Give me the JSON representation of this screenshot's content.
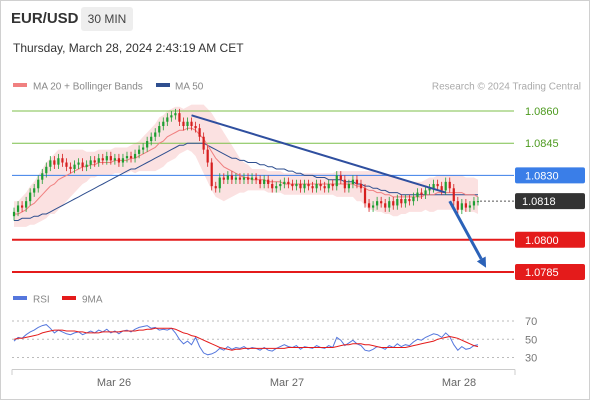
{
  "header": {
    "pair": "EUR/USD",
    "timeframe": "30 MIN",
    "datetime": "Thursday, March 28, 2024 2:43:19 AM CET"
  },
  "legend": {
    "ma20_bb": "MA 20 + Bollinger Bands",
    "ma50": "MA 50",
    "ma20_color": "#f08080",
    "ma50_color": "#2f4f8f",
    "credit": "Research © 2024 Trading Central"
  },
  "chart_data": [
    {
      "type": "candlestick",
      "y_range": [
        1.0772,
        1.0876
      ],
      "x_tick_labels": [
        "Mar 26",
        "Mar 27",
        "Mar 28"
      ],
      "levels": [
        {
          "value": 1.086,
          "label": "1.0860",
          "color": "#7cbf4a",
          "kind": "resistance"
        },
        {
          "value": 1.0845,
          "label": "1.0845",
          "color": "#7cbf4a",
          "kind": "resistance"
        },
        {
          "value": 1.083,
          "label": "1.0830",
          "color": "#3a7ee8",
          "kind": "pivot"
        },
        {
          "value": 1.0818,
          "label": "1.0818",
          "color": "#333333",
          "kind": "last-price"
        },
        {
          "value": 1.08,
          "label": "1.0800",
          "color": "#e41b1b",
          "kind": "support"
        },
        {
          "value": 1.0785,
          "label": "1.0785",
          "color": "#e41b1b",
          "kind": "support"
        }
      ],
      "close": [
        1.0813,
        1.0816,
        1.0815,
        1.0818,
        1.0822,
        1.0824,
        1.0828,
        1.0831,
        1.0834,
        1.0837,
        1.0835,
        1.0838,
        1.0836,
        1.0834,
        1.0833,
        1.0835,
        1.0836,
        1.0834,
        1.0835,
        1.0837,
        1.0836,
        1.0838,
        1.0837,
        1.0839,
        1.0837,
        1.0838,
        1.0836,
        1.0838,
        1.0839,
        1.0838,
        1.084,
        1.0842,
        1.0843,
        1.0846,
        1.0848,
        1.085,
        1.0853,
        1.0855,
        1.0857,
        1.0858,
        1.0859,
        1.0855,
        1.0853,
        1.0855,
        1.0853,
        1.0852,
        1.0848,
        1.0842,
        1.0836,
        1.0825,
        1.0824,
        1.0829,
        1.0828,
        1.083,
        1.0828,
        1.0829,
        1.0828,
        1.0829,
        1.0828,
        1.0829,
        1.0828,
        1.0826,
        1.0828,
        1.0826,
        1.0824,
        1.0825,
        1.0826,
        1.0827,
        1.0826,
        1.0825,
        1.0826,
        1.0824,
        1.0826,
        1.0825,
        1.0824,
        1.0826,
        1.0825,
        1.0824,
        1.0826,
        1.0825,
        1.083,
        1.0828,
        1.0824,
        1.0826,
        1.0828,
        1.0826,
        1.0824,
        1.0817,
        1.0815,
        1.0816,
        1.0818,
        1.0817,
        1.0815,
        1.0818,
        1.0816,
        1.0819,
        1.0817,
        1.0819,
        1.0818,
        1.082,
        1.0822,
        1.0821,
        1.0823,
        1.0824,
        1.0826,
        1.0825,
        1.0823,
        1.0827,
        1.0824,
        1.0818,
        1.0814,
        1.0817,
        1.0815,
        1.0816,
        1.0818,
        1.0818
      ],
      "ma20": [
        1.0812,
        1.0812,
        1.0813,
        1.0814,
        1.0816,
        1.0817,
        1.0819,
        1.0821,
        1.0823,
        1.0825,
        1.0826,
        1.0828,
        1.0829,
        1.083,
        1.0831,
        1.0832,
        1.0833,
        1.0834,
        1.0834,
        1.0835,
        1.0835,
        1.0836,
        1.0836,
        1.0836,
        1.0836,
        1.0837,
        1.0837,
        1.0837,
        1.0837,
        1.0838,
        1.0838,
        1.0839,
        1.084,
        1.0841,
        1.0842,
        1.0843,
        1.0845,
        1.0846,
        1.0848,
        1.0849,
        1.085,
        1.0851,
        1.0851,
        1.0852,
        1.0852,
        1.0851,
        1.0849,
        1.0847,
        1.0844,
        1.0841,
        1.0838,
        1.0836,
        1.0834,
        1.0833,
        1.0832,
        1.0831,
        1.083,
        1.0829,
        1.0829,
        1.0828,
        1.0828,
        1.0828,
        1.0828,
        1.0827,
        1.0827,
        1.0827,
        1.0827,
        1.0826,
        1.0826,
        1.0826,
        1.0826,
        1.0826,
        1.0826,
        1.0826,
        1.0826,
        1.0826,
        1.0826,
        1.0826,
        1.0826,
        1.0826,
        1.0826,
        1.0826,
        1.0826,
        1.0826,
        1.0826,
        1.0825,
        1.0825,
        1.0824,
        1.0823,
        1.0823,
        1.0822,
        1.0822,
        1.0821,
        1.0821,
        1.082,
        1.082,
        1.082,
        1.082,
        1.082,
        1.082,
        1.082,
        1.082,
        1.0821,
        1.0821,
        1.0821,
        1.0822,
        1.0822,
        1.0822,
        1.0822,
        1.0822,
        1.0822,
        1.0822,
        1.0821,
        1.0821,
        1.0821,
        1.082
      ],
      "bb_half_width": [
        0.0006,
        0.0006,
        0.0007,
        0.0008,
        0.0009,
        0.001,
        0.0011,
        0.0012,
        0.0013,
        0.0013,
        0.0014,
        0.0014,
        0.0013,
        0.0012,
        0.0011,
        0.001,
        0.0009,
        0.0008,
        0.0007,
        0.0006,
        0.0006,
        0.0006,
        0.0006,
        0.0006,
        0.0006,
        0.0006,
        0.0006,
        0.0006,
        0.0006,
        0.0006,
        0.0007,
        0.0007,
        0.0008,
        0.0009,
        0.001,
        0.0011,
        0.0012,
        0.0012,
        0.0012,
        0.0012,
        0.0012,
        0.0011,
        0.001,
        0.001,
        0.0011,
        0.0012,
        0.0014,
        0.0016,
        0.0017,
        0.0018,
        0.0018,
        0.0017,
        0.0016,
        0.0014,
        0.0012,
        0.001,
        0.0008,
        0.0007,
        0.0006,
        0.0005,
        0.0005,
        0.0005,
        0.0005,
        0.0005,
        0.0005,
        0.0005,
        0.0005,
        0.0005,
        0.0005,
        0.0005,
        0.0005,
        0.0005,
        0.0005,
        0.0005,
        0.0005,
        0.0005,
        0.0005,
        0.0005,
        0.0005,
        0.0005,
        0.0006,
        0.0006,
        0.0006,
        0.0006,
        0.0006,
        0.0007,
        0.0007,
        0.0008,
        0.0009,
        0.0009,
        0.0009,
        0.0009,
        0.0009,
        0.0009,
        0.0009,
        0.0009,
        0.0008,
        0.0008,
        0.0007,
        0.0007,
        0.0007,
        0.0007,
        0.0007,
        0.0008,
        0.0008,
        0.0008,
        0.0008,
        0.0008,
        0.0008,
        0.0008,
        0.0008,
        0.0008,
        0.0008,
        0.0008,
        0.0008,
        0.0008
      ],
      "ma50": [
        1.0809,
        1.0809,
        1.081,
        1.081,
        1.081,
        1.0811,
        1.0811,
        1.0812,
        1.0812,
        1.0813,
        1.0814,
        1.0815,
        1.0816,
        1.0817,
        1.0818,
        1.0819,
        1.082,
        1.0821,
        1.0822,
        1.0823,
        1.0824,
        1.0825,
        1.0826,
        1.0827,
        1.0828,
        1.0829,
        1.083,
        1.0831,
        1.0832,
        1.0833,
        1.0833,
        1.0834,
        1.0835,
        1.0836,
        1.0837,
        1.0838,
        1.0839,
        1.084,
        1.0841,
        1.0842,
        1.0843,
        1.0844,
        1.0844,
        1.0845,
        1.0845,
        1.0845,
        1.0845,
        1.0845,
        1.0844,
        1.0843,
        1.0842,
        1.0841,
        1.084,
        1.0839,
        1.0838,
        1.0838,
        1.0837,
        1.0837,
        1.0836,
        1.0836,
        1.0836,
        1.0835,
        1.0835,
        1.0834,
        1.0834,
        1.0833,
        1.0833,
        1.0833,
        1.0832,
        1.0832,
        1.0831,
        1.0831,
        1.083,
        1.083,
        1.083,
        1.0829,
        1.0829,
        1.0829,
        1.0828,
        1.0828,
        1.0828,
        1.0828,
        1.0827,
        1.0827,
        1.0827,
        1.0826,
        1.0826,
        1.0825,
        1.0825,
        1.0824,
        1.0824,
        1.0823,
        1.0823,
        1.0822,
        1.0822,
        1.0822,
        1.0821,
        1.0821,
        1.0821,
        1.0821,
        1.0821,
        1.0821,
        1.0821,
        1.0821,
        1.0821,
        1.0821,
        1.0821,
        1.0821,
        1.0821,
        1.0821,
        1.0821,
        1.0821,
        1.0821,
        1.0821,
        1.0821,
        1.0821
      ],
      "trendline": [
        {
          "i": 44,
          "price": 1.0858
        },
        {
          "i": 107,
          "price": 1.0822
        }
      ],
      "projection": [
        {
          "i": 108,
          "price": 1.0818
        },
        {
          "i": 117,
          "price": 1.0787
        }
      ]
    },
    {
      "type": "line",
      "name": "RSI",
      "legend": [
        {
          "label": "RSI",
          "color": "#5577dd"
        },
        {
          "label": "9MA",
          "color": "#e41b1b"
        }
      ],
      "y_range": [
        20,
        80
      ],
      "y_ticks": [
        {
          "value": 70,
          "label": "70"
        },
        {
          "value": 50,
          "label": "50"
        },
        {
          "value": 30,
          "label": "30"
        }
      ],
      "rsi": [
        48,
        52,
        51,
        55,
        58,
        60,
        63,
        65,
        66,
        62,
        57,
        60,
        58,
        56,
        55,
        57,
        58,
        55,
        57,
        59,
        57,
        60,
        58,
        61,
        57,
        59,
        56,
        59,
        60,
        58,
        61,
        63,
        64,
        65,
        62,
        63,
        60,
        61,
        60,
        62,
        57,
        50,
        45,
        48,
        44,
        52,
        42,
        35,
        33,
        34,
        36,
        40,
        38,
        42,
        39,
        41,
        40,
        42,
        39,
        41,
        40,
        38,
        41,
        38,
        37,
        40,
        42,
        44,
        42,
        41,
        43,
        39,
        42,
        41,
        40,
        43,
        41,
        40,
        43,
        41,
        52,
        49,
        43,
        46,
        49,
        45,
        43,
        38,
        37,
        39,
        42,
        41,
        39,
        43,
        41,
        45,
        42,
        44,
        43,
        47,
        50,
        49,
        52,
        54,
        56,
        55,
        52,
        57,
        53,
        44,
        38,
        42,
        39,
        40,
        43,
        44
      ],
      "ma9": [
        50,
        51,
        51,
        52,
        53,
        54,
        55,
        57,
        58,
        59,
        60,
        60,
        60,
        59,
        59,
        59,
        58,
        58,
        57,
        57,
        57,
        57,
        58,
        58,
        58,
        58,
        58,
        59,
        59,
        59,
        59,
        60,
        60,
        61,
        61,
        62,
        62,
        62,
        62,
        62,
        61,
        59,
        57,
        56,
        54,
        53,
        51,
        49,
        47,
        45,
        43,
        41,
        40,
        39,
        38,
        39,
        39,
        40,
        40,
        40,
        40,
        40,
        40,
        40,
        40,
        40,
        40,
        40,
        41,
        41,
        41,
        41,
        41,
        41,
        41,
        41,
        41,
        41,
        41,
        41,
        42,
        43,
        44,
        44,
        45,
        45,
        45,
        44,
        44,
        43,
        42,
        41,
        41,
        41,
        41,
        41,
        41,
        41,
        42,
        43,
        44,
        45,
        46,
        47,
        48,
        50,
        51,
        52,
        53,
        52,
        51,
        49,
        47,
        45,
        43,
        42
      ]
    }
  ]
}
